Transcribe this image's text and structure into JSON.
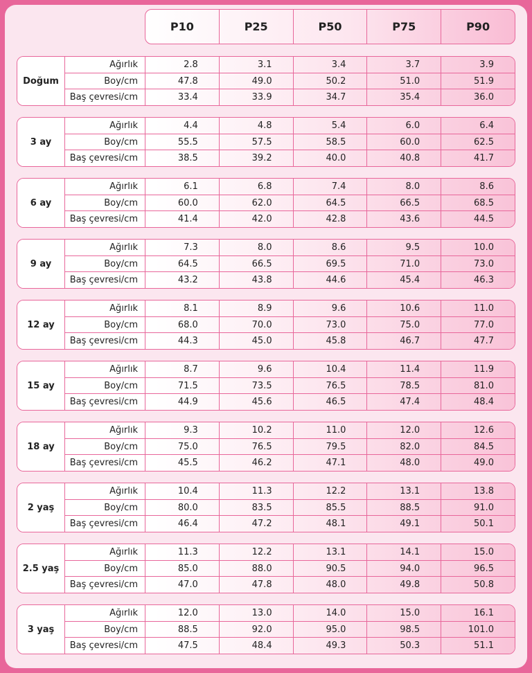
{
  "columns": [
    "P10",
    "P25",
    "P50",
    "P75",
    "P90"
  ],
  "groups": [
    {
      "age": "Doğum",
      "rows": [
        {
          "label": "Ağırlık",
          "values": [
            "2.8",
            "3.1",
            "3.4",
            "3.7",
            "3.9"
          ]
        },
        {
          "label": "Boy/cm",
          "values": [
            "47.8",
            "49.0",
            "50.2",
            "51.0",
            "51.9"
          ]
        },
        {
          "label": "Baş çevresi/cm",
          "values": [
            "33.4",
            "33.9",
            "34.7",
            "35.4",
            "36.0"
          ]
        }
      ]
    },
    {
      "age": "3 ay",
      "rows": [
        {
          "label": "Ağırlık",
          "values": [
            "4.4",
            "4.8",
            "5.4",
            "6.0",
            "6.4"
          ]
        },
        {
          "label": "Boy/cm",
          "values": [
            "55.5",
            "57.5",
            "58.5",
            "60.0",
            "62.5"
          ]
        },
        {
          "label": "Baş çevresi/cm",
          "values": [
            "38.5",
            "39.2",
            "40.0",
            "40.8",
            "41.7"
          ]
        }
      ]
    },
    {
      "age": "6 ay",
      "rows": [
        {
          "label": "Ağırlık",
          "values": [
            "6.1",
            "6.8",
            "7.4",
            "8.0",
            "8.6"
          ]
        },
        {
          "label": "Boy/cm",
          "values": [
            "60.0",
            "62.0",
            "64.5",
            "66.5",
            "68.5"
          ]
        },
        {
          "label": "Baş çevresi/cm",
          "values": [
            "41.4",
            "42.0",
            "42.8",
            "43.6",
            "44.5"
          ]
        }
      ]
    },
    {
      "age": "9 ay",
      "rows": [
        {
          "label": "Ağırlık",
          "values": [
            "7.3",
            "8.0",
            "8.6",
            "9.5",
            "10.0"
          ]
        },
        {
          "label": "Boy/cm",
          "values": [
            "64.5",
            "66.5",
            "69.5",
            "71.0",
            "73.0"
          ]
        },
        {
          "label": "Baş çevresi/cm",
          "values": [
            "43.2",
            "43.8",
            "44.6",
            "45.4",
            "46.3"
          ]
        }
      ]
    },
    {
      "age": "12 ay",
      "rows": [
        {
          "label": "Ağırlık",
          "values": [
            "8.1",
            "8.9",
            "9.6",
            "10.6",
            "11.0"
          ]
        },
        {
          "label": "Boy/cm",
          "values": [
            "68.0",
            "70.0",
            "73.0",
            "75.0",
            "77.0"
          ]
        },
        {
          "label": "Baş çevresi/cm",
          "values": [
            "44.3",
            "45.0",
            "45.8",
            "46.7",
            "47.7"
          ]
        }
      ]
    },
    {
      "age": "15 ay",
      "rows": [
        {
          "label": "Ağırlık",
          "values": [
            "8.7",
            "9.6",
            "10.4",
            "11.4",
            "11.9"
          ]
        },
        {
          "label": "Boy/cm",
          "values": [
            "71.5",
            "73.5",
            "76.5",
            "78.5",
            "81.0"
          ]
        },
        {
          "label": "Baş çevresi/cm",
          "values": [
            "44.9",
            "45.6",
            "46.5",
            "47.4",
            "48.4"
          ]
        }
      ]
    },
    {
      "age": "18 ay",
      "rows": [
        {
          "label": "Ağırlık",
          "values": [
            "9.3",
            "10.2",
            "11.0",
            "12.0",
            "12.6"
          ]
        },
        {
          "label": "Boy/cm",
          "values": [
            "75.0",
            "76.5",
            "79.5",
            "82.0",
            "84.5"
          ]
        },
        {
          "label": "Baş çevresi/cm",
          "values": [
            "45.5",
            "46.2",
            "47.1",
            "48.0",
            "49.0"
          ]
        }
      ]
    },
    {
      "age": "2 yaş",
      "rows": [
        {
          "label": "Ağırlık",
          "values": [
            "10.4",
            "11.3",
            "12.2",
            "13.1",
            "13.8"
          ]
        },
        {
          "label": "Boy/cm",
          "values": [
            "80.0",
            "83.5",
            "85.5",
            "88.5",
            "91.0"
          ]
        },
        {
          "label": "Baş çevresi/cm",
          "values": [
            "46.4",
            "47.2",
            "48.1",
            "49.1",
            "50.1"
          ]
        }
      ]
    },
    {
      "age": "2.5 yaş",
      "rows": [
        {
          "label": "Ağırlık",
          "values": [
            "11.3",
            "12.2",
            "13.1",
            "14.1",
            "15.0"
          ]
        },
        {
          "label": "Boy/cm",
          "values": [
            "85.0",
            "88.0",
            "90.5",
            "94.0",
            "96.5"
          ]
        },
        {
          "label": "Baş çevresi/cm",
          "values": [
            "47.0",
            "47.8",
            "48.0",
            "49.8",
            "50.8"
          ]
        }
      ]
    },
    {
      "age": "3 yaş",
      "rows": [
        {
          "label": "Ağırlık",
          "values": [
            "12.0",
            "13.0",
            "14.0",
            "15.0",
            "16.1"
          ]
        },
        {
          "label": "Boy/cm",
          "values": [
            "88.5",
            "92.0",
            "95.0",
            "98.5",
            "101.0"
          ]
        },
        {
          "label": "Baş çevresi/cm",
          "values": [
            "47.5",
            "48.4",
            "49.3",
            "50.3",
            "51.1"
          ]
        }
      ]
    }
  ]
}
